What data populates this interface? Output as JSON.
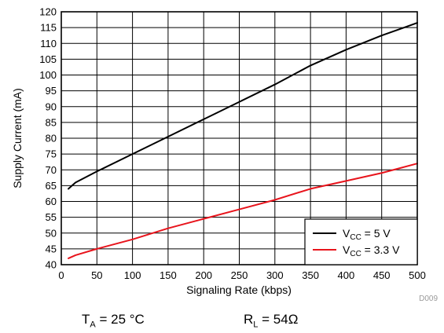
{
  "chart_data": {
    "type": "line",
    "xlabel": "Signaling Rate (kbps)",
    "ylabel": "Supply Current (mA)",
    "xlim": [
      0,
      500
    ],
    "ylim": [
      40,
      120
    ],
    "xticks": [
      0,
      50,
      100,
      150,
      200,
      250,
      300,
      350,
      400,
      450,
      500
    ],
    "yticks": [
      40,
      45,
      50,
      55,
      60,
      65,
      70,
      75,
      80,
      85,
      90,
      95,
      100,
      105,
      110,
      115,
      120
    ],
    "grid": true,
    "legend_position": "bottom-right",
    "series": [
      {
        "name_main": "V",
        "name_sub": "CC",
        "name_rest": " = 5 V",
        "color": "#000000",
        "x": [
          10,
          20,
          50,
          100,
          150,
          200,
          250,
          300,
          350,
          400,
          450,
          500
        ],
        "y": [
          64,
          66,
          69.5,
          75,
          80.5,
          86,
          91.5,
          97,
          103,
          108,
          112.5,
          116.5
        ]
      },
      {
        "name_main": "V",
        "name_sub": "CC",
        "name_rest": " = 3.3 V",
        "color": "#e8141c",
        "x": [
          10,
          20,
          50,
          100,
          150,
          200,
          250,
          300,
          350,
          400,
          450,
          500
        ],
        "y": [
          42,
          43,
          45,
          48,
          51.5,
          54.5,
          57.5,
          60.5,
          64,
          66.5,
          69,
          72
        ]
      }
    ],
    "figure_code": "D009"
  },
  "conditions": {
    "ta_main": "T",
    "ta_sub": "A",
    "ta_rest": " = 25 °C",
    "rl_main": "R",
    "rl_sub": "L",
    "rl_rest": " = 54Ω"
  }
}
